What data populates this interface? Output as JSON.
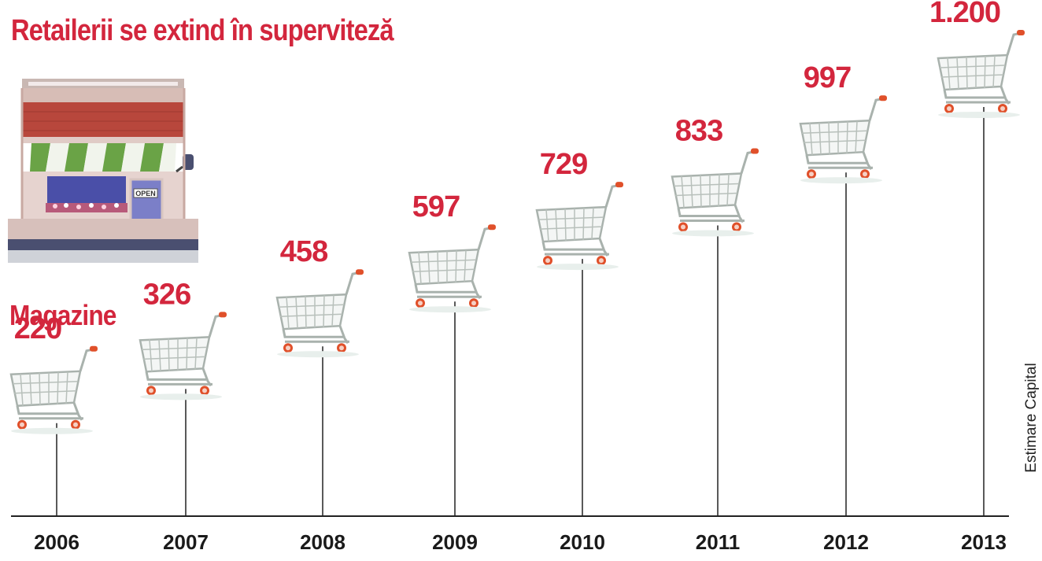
{
  "chart_data": {
    "type": "bar",
    "title": "Retailerii se extind în superviteză",
    "ylabel": "Magazine",
    "source": "Estimare Capital",
    "categories": [
      "2006",
      "2007",
      "2008",
      "2009",
      "2010",
      "2011",
      "2012",
      "2013"
    ],
    "values": [
      220,
      326,
      458,
      597,
      729,
      833,
      997,
      1200
    ],
    "value_labels": [
      "220",
      "326",
      "458",
      "597",
      "729",
      "833",
      "997",
      "1.200"
    ],
    "ylim": [
      0,
      1200
    ],
    "grid": false,
    "legend": "none",
    "marker_icon": "shopping-cart-icon",
    "colors": {
      "accent": "#d3263d",
      "cart_handle": "#e0502a",
      "cart_frame": "#a9b2ad",
      "axis": "#222222"
    }
  },
  "illustration": {
    "icon": "storefront-icon",
    "sign_text": "OPEN"
  }
}
